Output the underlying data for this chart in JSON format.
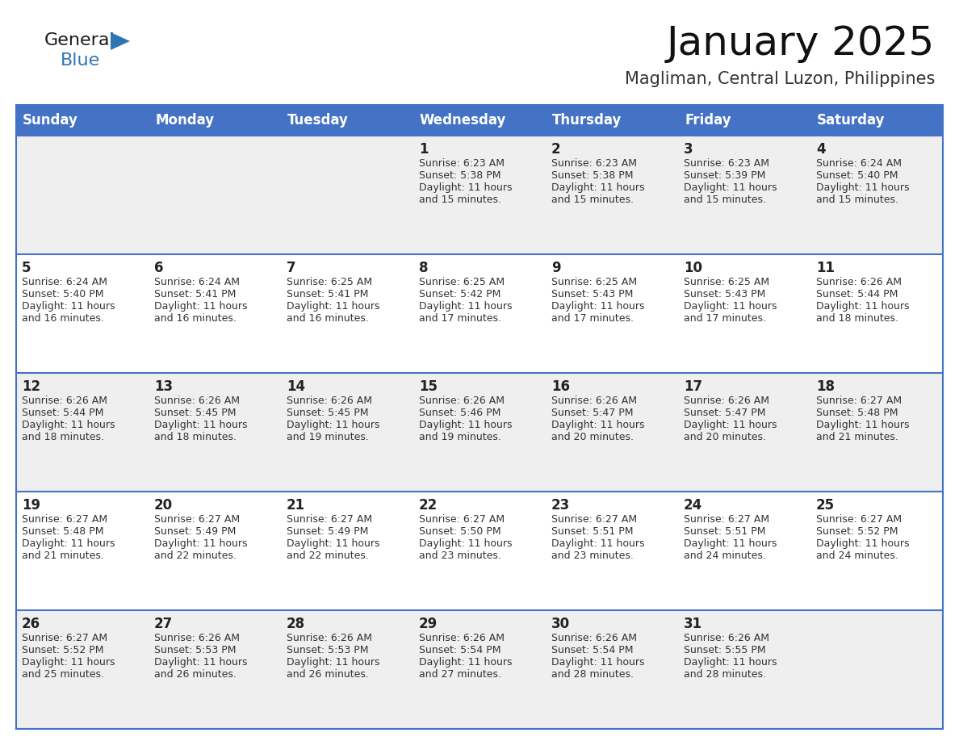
{
  "title": "January 2025",
  "subtitle": "Magliman, Central Luzon, Philippines",
  "days_of_week": [
    "Sunday",
    "Monday",
    "Tuesday",
    "Wednesday",
    "Thursday",
    "Friday",
    "Saturday"
  ],
  "header_bg": "#4472C4",
  "header_text_color": "#FFFFFF",
  "odd_row_bg": "#EFEFEF",
  "even_row_bg": "#FFFFFF",
  "line_color": "#4472C4",
  "day_num_color": "#222222",
  "cell_text_color": "#333333",
  "calendar_data": [
    [
      {
        "day": null,
        "sunrise": null,
        "sunset": null,
        "daylight_h": null,
        "daylight_m": null
      },
      {
        "day": null,
        "sunrise": null,
        "sunset": null,
        "daylight_h": null,
        "daylight_m": null
      },
      {
        "day": null,
        "sunrise": null,
        "sunset": null,
        "daylight_h": null,
        "daylight_m": null
      },
      {
        "day": 1,
        "sunrise": "6:23 AM",
        "sunset": "5:38 PM",
        "daylight_h": "11 hours",
        "daylight_m": "and 15 minutes."
      },
      {
        "day": 2,
        "sunrise": "6:23 AM",
        "sunset": "5:38 PM",
        "daylight_h": "11 hours",
        "daylight_m": "and 15 minutes."
      },
      {
        "day": 3,
        "sunrise": "6:23 AM",
        "sunset": "5:39 PM",
        "daylight_h": "11 hours",
        "daylight_m": "and 15 minutes."
      },
      {
        "day": 4,
        "sunrise": "6:24 AM",
        "sunset": "5:40 PM",
        "daylight_h": "11 hours",
        "daylight_m": "and 15 minutes."
      }
    ],
    [
      {
        "day": 5,
        "sunrise": "6:24 AM",
        "sunset": "5:40 PM",
        "daylight_h": "11 hours",
        "daylight_m": "and 16 minutes."
      },
      {
        "day": 6,
        "sunrise": "6:24 AM",
        "sunset": "5:41 PM",
        "daylight_h": "11 hours",
        "daylight_m": "and 16 minutes."
      },
      {
        "day": 7,
        "sunrise": "6:25 AM",
        "sunset": "5:41 PM",
        "daylight_h": "11 hours",
        "daylight_m": "and 16 minutes."
      },
      {
        "day": 8,
        "sunrise": "6:25 AM",
        "sunset": "5:42 PM",
        "daylight_h": "11 hours",
        "daylight_m": "and 17 minutes."
      },
      {
        "day": 9,
        "sunrise": "6:25 AM",
        "sunset": "5:43 PM",
        "daylight_h": "11 hours",
        "daylight_m": "and 17 minutes."
      },
      {
        "day": 10,
        "sunrise": "6:25 AM",
        "sunset": "5:43 PM",
        "daylight_h": "11 hours",
        "daylight_m": "and 17 minutes."
      },
      {
        "day": 11,
        "sunrise": "6:26 AM",
        "sunset": "5:44 PM",
        "daylight_h": "11 hours",
        "daylight_m": "and 18 minutes."
      }
    ],
    [
      {
        "day": 12,
        "sunrise": "6:26 AM",
        "sunset": "5:44 PM",
        "daylight_h": "11 hours",
        "daylight_m": "and 18 minutes."
      },
      {
        "day": 13,
        "sunrise": "6:26 AM",
        "sunset": "5:45 PM",
        "daylight_h": "11 hours",
        "daylight_m": "and 18 minutes."
      },
      {
        "day": 14,
        "sunrise": "6:26 AM",
        "sunset": "5:45 PM",
        "daylight_h": "11 hours",
        "daylight_m": "and 19 minutes."
      },
      {
        "day": 15,
        "sunrise": "6:26 AM",
        "sunset": "5:46 PM",
        "daylight_h": "11 hours",
        "daylight_m": "and 19 minutes."
      },
      {
        "day": 16,
        "sunrise": "6:26 AM",
        "sunset": "5:47 PM",
        "daylight_h": "11 hours",
        "daylight_m": "and 20 minutes."
      },
      {
        "day": 17,
        "sunrise": "6:26 AM",
        "sunset": "5:47 PM",
        "daylight_h": "11 hours",
        "daylight_m": "and 20 minutes."
      },
      {
        "day": 18,
        "sunrise": "6:27 AM",
        "sunset": "5:48 PM",
        "daylight_h": "11 hours",
        "daylight_m": "and 21 minutes."
      }
    ],
    [
      {
        "day": 19,
        "sunrise": "6:27 AM",
        "sunset": "5:48 PM",
        "daylight_h": "11 hours",
        "daylight_m": "and 21 minutes."
      },
      {
        "day": 20,
        "sunrise": "6:27 AM",
        "sunset": "5:49 PM",
        "daylight_h": "11 hours",
        "daylight_m": "and 22 minutes."
      },
      {
        "day": 21,
        "sunrise": "6:27 AM",
        "sunset": "5:49 PM",
        "daylight_h": "11 hours",
        "daylight_m": "and 22 minutes."
      },
      {
        "day": 22,
        "sunrise": "6:27 AM",
        "sunset": "5:50 PM",
        "daylight_h": "11 hours",
        "daylight_m": "and 23 minutes."
      },
      {
        "day": 23,
        "sunrise": "6:27 AM",
        "sunset": "5:51 PM",
        "daylight_h": "11 hours",
        "daylight_m": "and 23 minutes."
      },
      {
        "day": 24,
        "sunrise": "6:27 AM",
        "sunset": "5:51 PM",
        "daylight_h": "11 hours",
        "daylight_m": "and 24 minutes."
      },
      {
        "day": 25,
        "sunrise": "6:27 AM",
        "sunset": "5:52 PM",
        "daylight_h": "11 hours",
        "daylight_m": "and 24 minutes."
      }
    ],
    [
      {
        "day": 26,
        "sunrise": "6:27 AM",
        "sunset": "5:52 PM",
        "daylight_h": "11 hours",
        "daylight_m": "and 25 minutes."
      },
      {
        "day": 27,
        "sunrise": "6:26 AM",
        "sunset": "5:53 PM",
        "daylight_h": "11 hours",
        "daylight_m": "and 26 minutes."
      },
      {
        "day": 28,
        "sunrise": "6:26 AM",
        "sunset": "5:53 PM",
        "daylight_h": "11 hours",
        "daylight_m": "and 26 minutes."
      },
      {
        "day": 29,
        "sunrise": "6:26 AM",
        "sunset": "5:54 PM",
        "daylight_h": "11 hours",
        "daylight_m": "and 27 minutes."
      },
      {
        "day": 30,
        "sunrise": "6:26 AM",
        "sunset": "5:54 PM",
        "daylight_h": "11 hours",
        "daylight_m": "and 28 minutes."
      },
      {
        "day": 31,
        "sunrise": "6:26 AM",
        "sunset": "5:55 PM",
        "daylight_h": "11 hours",
        "daylight_m": "and 28 minutes."
      },
      {
        "day": null,
        "sunrise": null,
        "sunset": null,
        "daylight_h": null,
        "daylight_m": null
      }
    ]
  ],
  "logo_general_color": "#1a1a1a",
  "logo_blue_color": "#2E75B6",
  "title_fontsize": 36,
  "subtitle_fontsize": 15,
  "header_fontsize": 12,
  "day_num_fontsize": 12,
  "cell_text_fontsize": 9
}
